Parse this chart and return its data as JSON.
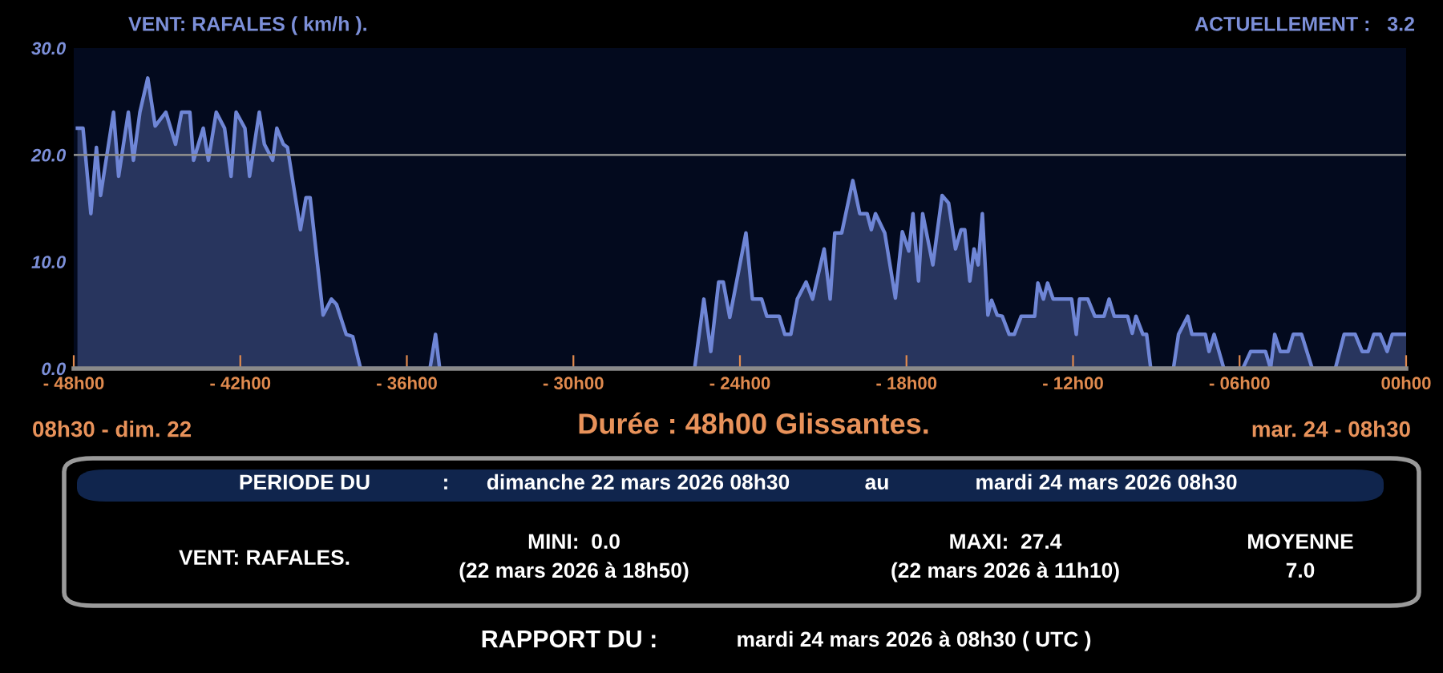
{
  "chart_data": {
    "type": "area",
    "title": "VENT: RAFALES ( km/h ).",
    "x": [
      "2026-03-22T08:38",
      "2026-03-22T08:50",
      "2026-03-22T09:07",
      "2026-03-22T09:19",
      "2026-03-22T09:28",
      "2026-03-22T09:56",
      "2026-03-22T10:07",
      "2026-03-22T10:28",
      "2026-03-22T10:39",
      "2026-03-22T10:53",
      "2026-03-22T11:10",
      "2026-03-22T11:26",
      "2026-03-22T11:49",
      "2026-03-22T12:10",
      "2026-03-22T12:23",
      "2026-03-22T12:41",
      "2026-03-22T12:49",
      "2026-03-22T13:10",
      "2026-03-22T13:21",
      "2026-03-22T13:38",
      "2026-03-22T13:56",
      "2026-03-22T14:10",
      "2026-03-22T14:21",
      "2026-03-22T14:40",
      "2026-03-22T14:50",
      "2026-03-22T15:11",
      "2026-03-22T15:22",
      "2026-03-22T15:40",
      "2026-03-22T15:49",
      "2026-03-22T16:03",
      "2026-03-22T16:12",
      "2026-03-22T16:40",
      "2026-03-22T16:52",
      "2026-03-22T17:01",
      "2026-03-22T17:29",
      "2026-03-22T17:47",
      "2026-03-22T17:58",
      "2026-03-22T18:19",
      "2026-03-22T18:33",
      "2026-03-22T18:50",
      "2026-03-22T21:20",
      "2026-03-22T21:32",
      "2026-03-22T21:41",
      "2026-03-23T06:52",
      "2026-03-23T07:12",
      "2026-03-23T07:27",
      "2026-03-23T07:44",
      "2026-03-23T07:54",
      "2026-03-23T08:08",
      "2026-03-23T08:43",
      "2026-03-23T08:57",
      "2026-03-23T09:17",
      "2026-03-23T09:28",
      "2026-03-23T09:55",
      "2026-03-23T10:07",
      "2026-03-23T10:20",
      "2026-03-23T10:34",
      "2026-03-23T10:53",
      "2026-03-23T11:07",
      "2026-03-23T11:32",
      "2026-03-23T11:45",
      "2026-03-23T11:55",
      "2026-03-23T12:10",
      "2026-03-23T12:34",
      "2026-03-23T12:49",
      "2026-03-23T13:05",
      "2026-03-23T13:14",
      "2026-03-23T13:23",
      "2026-03-23T13:43",
      "2026-03-23T14:06",
      "2026-03-23T14:21",
      "2026-03-23T14:35",
      "2026-03-23T14:44",
      "2026-03-23T14:56",
      "2026-03-23T15:05",
      "2026-03-23T15:27",
      "2026-03-23T15:47",
      "2026-03-23T16:01",
      "2026-03-23T16:16",
      "2026-03-23T16:28",
      "2026-03-23T16:36",
      "2026-03-23T16:47",
      "2026-03-23T16:56",
      "2026-03-23T17:05",
      "2026-03-23T17:14",
      "2026-03-23T17:26",
      "2026-03-23T17:34",
      "2026-03-23T17:46",
      "2026-03-23T17:57",
      "2026-03-23T18:12",
      "2026-03-23T18:23",
      "2026-03-23T18:38",
      "2026-03-23T19:07",
      "2026-03-23T19:14",
      "2026-03-23T19:26",
      "2026-03-23T19:35",
      "2026-03-23T19:47",
      "2026-03-23T20:27",
      "2026-03-23T20:37",
      "2026-03-23T20:44",
      "2026-03-23T21:02",
      "2026-03-23T21:17",
      "2026-03-23T21:37",
      "2026-03-23T21:48",
      "2026-03-23T21:59",
      "2026-03-23T22:28",
      "2026-03-23T22:38",
      "2026-03-23T22:46",
      "2026-03-23T23:01",
      "2026-03-23T23:09",
      "2026-03-23T23:18",
      "2026-03-24T00:07",
      "2026-03-24T00:18",
      "2026-03-24T00:38",
      "2026-03-24T00:47",
      "2026-03-24T01:16",
      "2026-03-24T01:24",
      "2026-03-24T01:35",
      "2026-03-24T01:56",
      "2026-03-24T02:37",
      "2026-03-24T02:54",
      "2026-03-24T03:26",
      "2026-03-24T03:37",
      "2026-03-24T03:46",
      "2026-03-24T03:58",
      "2026-03-24T04:15",
      "2026-03-24T04:26",
      "2026-03-24T04:44",
      "2026-03-24T05:07",
      "2026-03-24T05:57",
      "2026-03-24T06:16",
      "2026-03-24T06:40",
      "2026-03-24T06:55",
      "2026-03-24T07:08",
      "2026-03-24T07:20",
      "2026-03-24T07:34",
      "2026-03-24T07:49",
      "2026-03-24T08:00",
      "2026-03-24T08:30"
    ],
    "series": [
      {
        "color": "#6f86d6",
        "values": [
          22.5,
          22.5,
          14.5,
          20.7,
          16.2,
          24,
          18,
          24,
          19.5,
          24,
          27.2,
          22.7,
          24,
          21,
          24,
          24,
          19.5,
          22.5,
          19.5,
          24,
          22.5,
          18,
          24,
          22.5,
          18,
          24,
          21,
          19.5,
          22.5,
          21,
          20.7,
          13,
          16,
          16,
          5,
          6.5,
          6,
          3.2,
          3,
          0,
          0,
          3.2,
          0,
          0,
          6.5,
          1.6,
          8.1,
          8.1,
          4.8,
          12.7,
          6.5,
          6.5,
          4.9,
          4.9,
          3.2,
          3.2,
          6.5,
          8.1,
          6.5,
          11.2,
          6.5,
          12.7,
          12.7,
          17.6,
          14.5,
          14.5,
          13,
          14.5,
          12.7,
          6.6,
          12.8,
          11,
          14.5,
          8.2,
          14.5,
          9.7,
          16.2,
          15.5,
          11.2,
          13,
          13,
          8.2,
          11.2,
          9.7,
          14.5,
          5,
          6.4,
          5,
          4.9,
          3.2,
          3.2,
          4.9,
          4.9,
          8,
          6.5,
          8,
          6.5,
          6.5,
          3.2,
          6.5,
          6.5,
          4.9,
          4.9,
          6.5,
          4.9,
          4.9,
          3.3,
          4.9,
          3.2,
          3.2,
          0,
          0,
          3.2,
          4.9,
          3.2,
          3.2,
          1.6,
          3.2,
          0,
          0,
          1.6,
          1.6,
          0,
          3.2,
          1.6,
          1.6,
          3.2,
          3.2,
          0,
          0,
          3.2,
          3.2,
          1.6,
          1.6,
          3.2,
          3.2,
          1.6,
          3.2,
          3.2
        ]
      }
    ],
    "xlim": [
      "2026-03-22T08:30",
      "2026-03-24T08:30"
    ],
    "xticks": [
      {
        "value": "2026-03-22T08:30",
        "label": "- 48h00"
      },
      {
        "value": "2026-03-22T14:30",
        "label": "- 42h00"
      },
      {
        "value": "2026-03-22T20:30",
        "label": "- 36h00"
      },
      {
        "value": "2026-03-23T02:30",
        "label": "- 30h00"
      },
      {
        "value": "2026-03-23T08:30",
        "label": "- 24h00"
      },
      {
        "value": "2026-03-23T14:30",
        "label": "- 18h00"
      },
      {
        "value": "2026-03-23T20:30",
        "label": "- 12h00"
      },
      {
        "value": "2026-03-24T02:30",
        "label": "- 06h00"
      },
      {
        "value": "2026-03-24T08:30",
        "label": "00h00"
      }
    ],
    "ylim": [
      0,
      30
    ],
    "yticks": [
      {
        "value": 0,
        "label": "0.0"
      },
      {
        "value": 10,
        "label": "10.0"
      },
      {
        "value": 20,
        "label": "20.0"
      },
      {
        "value": 30,
        "label": "30.0"
      }
    ],
    "ref_lines": [
      {
        "axis": "y",
        "value": 20,
        "color": "#8a8a8a"
      }
    ],
    "grid": false,
    "legend": false,
    "annotations": [
      "ACTUELLEMENT :   3.2",
      "08h30 - dim. 22",
      "Durée : 48h00 Glissantes.",
      "mar. 24 - 08h30",
      "PERIODE DU",
      ":",
      "dimanche 22 mars 2026 08h30",
      "au",
      "mardi 24 mars 2026 08h30",
      "VENT: RAFALES.",
      "MINI:  0.0",
      "(22 mars 2026 à 18h50)",
      "MAXI:  27.4",
      "(22 mars 2026 à 11h10)",
      "MOYENNE",
      "7.0",
      "RAPPORT DU :",
      "mardi 24 mars 2026 à 08h30 ( UTC )"
    ]
  }
}
